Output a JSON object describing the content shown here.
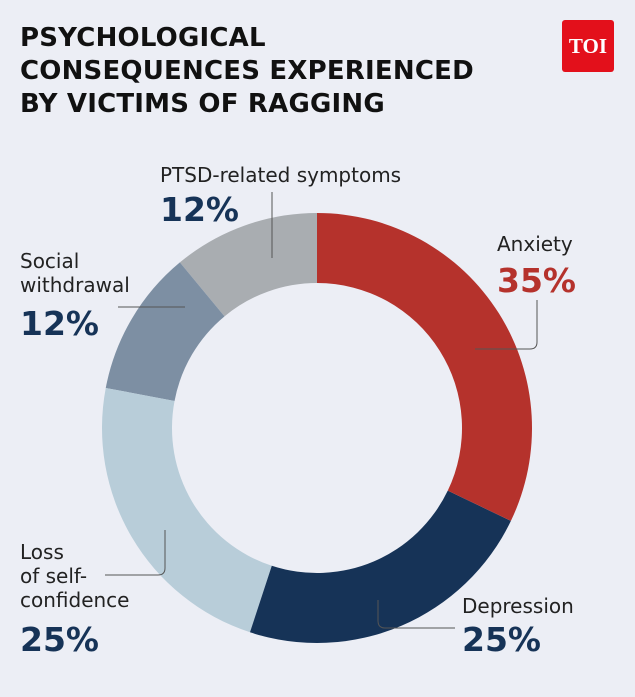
{
  "chart_data": {
    "type": "donut",
    "title": "PSYCHOLOGICAL\nCONSEQUENCES EXPERIENCED\nBY VICTIMS OF RAGGING",
    "logo": "TOI",
    "categories": [
      "Anxiety",
      "Depression",
      "Loss\nof self-\nconfidence",
      "Social\nwithdrawal",
      "PTSD-related symptoms"
    ],
    "values": [
      35,
      25,
      25,
      12,
      12
    ],
    "value_labels": [
      "35%",
      "25%",
      "25%",
      "12%",
      "12%"
    ],
    "colors": [
      "#b5322c",
      "#163357",
      "#b8cdd9",
      "#7d8fa3",
      "#a9adb1"
    ]
  }
}
